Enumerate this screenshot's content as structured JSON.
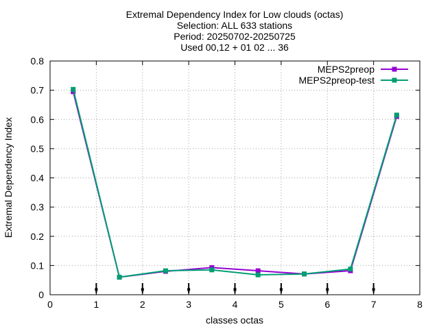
{
  "chart_data": {
    "type": "line",
    "title_lines": [
      "Extremal Dependency Index  for Low clouds (octas)",
      "Selection: ALL    633 stations",
      "Period: 20250702-20250725",
      "Used 00,12 + 01 02 ... 36"
    ],
    "xlabel": "classes octas",
    "ylabel": "Extremal Dependency Index",
    "xlim": [
      0,
      8
    ],
    "ylim": [
      0,
      0.8
    ],
    "xticks": [
      0,
      1,
      2,
      3,
      4,
      5,
      6,
      7,
      8
    ],
    "xtick_labels": [
      "0",
      "1",
      "2",
      "3",
      "4",
      "5",
      "6",
      "7",
      "8"
    ],
    "yticks": [
      0,
      0.1,
      0.2,
      0.3,
      0.4,
      0.5,
      0.6,
      0.7,
      0.8
    ],
    "ytick_labels": [
      "0",
      "0.1",
      "0.2",
      "0.3",
      "0.4",
      "0.5",
      "0.6",
      "0.7",
      "0.8"
    ],
    "grid": true,
    "legend_position": "top-right",
    "x": [
      0.5,
      1.5,
      2.5,
      3.5,
      4.5,
      5.5,
      6.5,
      7.5
    ],
    "series": [
      {
        "name": "MEPS2preop",
        "color": "#9400d3",
        "values": [
          0.695,
          0.06,
          0.08,
          0.093,
          0.082,
          0.071,
          0.082,
          0.61
        ]
      },
      {
        "name": "MEPS2preop-test",
        "color": "#009e73",
        "values": [
          0.703,
          0.06,
          0.082,
          0.085,
          0.068,
          0.071,
          0.088,
          0.615
        ]
      }
    ],
    "error_bar_x": [
      1,
      2,
      3,
      4,
      5,
      6,
      7
    ],
    "error_bar_center": 0.018,
    "error_bar_range": [
      0.005,
      0.04
    ]
  }
}
